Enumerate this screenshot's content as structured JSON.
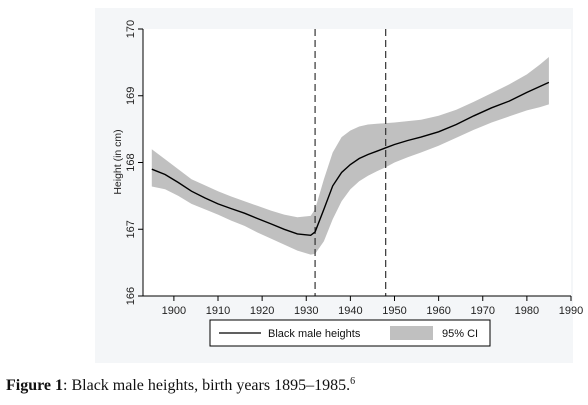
{
  "chart_data": {
    "type": "line",
    "title": "",
    "xlabel": "",
    "ylabel": "Height (in cm)",
    "xlim": [
      1893,
      1990
    ],
    "ylim": [
      166,
      170
    ],
    "xticks": [
      1900,
      1910,
      1920,
      1930,
      1940,
      1950,
      1960,
      1970,
      1980,
      1990
    ],
    "yticks": [
      166,
      167,
      168,
      169,
      170
    ],
    "grid": false,
    "reference_lines_x": [
      1932,
      1948
    ],
    "legend_position": "bottom",
    "series": [
      {
        "name": "Black male heights",
        "style": "line",
        "color": "#000000",
        "x": [
          1895,
          1898,
          1901,
          1904,
          1907,
          1910,
          1913,
          1916,
          1919,
          1922,
          1925,
          1928,
          1931,
          1932,
          1934,
          1936,
          1938,
          1940,
          1942,
          1944,
          1946,
          1948,
          1950,
          1953,
          1956,
          1960,
          1964,
          1968,
          1972,
          1976,
          1980,
          1983,
          1985
        ],
        "y": [
          167.9,
          167.82,
          167.7,
          167.57,
          167.47,
          167.38,
          167.31,
          167.24,
          167.16,
          167.08,
          167.0,
          166.93,
          166.91,
          166.96,
          167.3,
          167.65,
          167.85,
          167.97,
          168.06,
          168.12,
          168.17,
          168.22,
          168.27,
          168.33,
          168.38,
          168.46,
          168.57,
          168.7,
          168.82,
          168.92,
          169.05,
          169.14,
          169.2
        ]
      },
      {
        "name": "95% CI",
        "style": "band",
        "color": "#c0c0c0",
        "x": [
          1895,
          1898,
          1901,
          1904,
          1907,
          1910,
          1913,
          1916,
          1919,
          1922,
          1925,
          1928,
          1931,
          1932,
          1934,
          1936,
          1938,
          1940,
          1942,
          1944,
          1946,
          1948,
          1950,
          1953,
          1956,
          1960,
          1964,
          1968,
          1972,
          1976,
          1980,
          1983,
          1985
        ],
        "lower": [
          167.64,
          167.6,
          167.5,
          167.38,
          167.3,
          167.22,
          167.13,
          167.05,
          166.95,
          166.86,
          166.77,
          166.68,
          166.62,
          166.63,
          166.82,
          167.15,
          167.42,
          167.6,
          167.72,
          167.8,
          167.87,
          167.93,
          168.0,
          168.08,
          168.15,
          168.25,
          168.37,
          168.49,
          168.6,
          168.69,
          168.78,
          168.83,
          168.87
        ],
        "upper": [
          168.2,
          168.05,
          167.9,
          167.75,
          167.66,
          167.57,
          167.49,
          167.42,
          167.35,
          167.28,
          167.22,
          167.18,
          167.2,
          167.3,
          167.75,
          168.15,
          168.38,
          168.48,
          168.54,
          168.57,
          168.58,
          168.59,
          168.6,
          168.62,
          168.64,
          168.7,
          168.79,
          168.91,
          169.04,
          169.17,
          169.32,
          169.47,
          169.58
        ]
      }
    ]
  },
  "legend": {
    "line_label": "Black male heights",
    "band_label": "95% CI"
  },
  "caption": {
    "label": "Figure 1",
    "text": ": Black male heights, birth years 1895–1985.",
    "footnote": "6"
  }
}
